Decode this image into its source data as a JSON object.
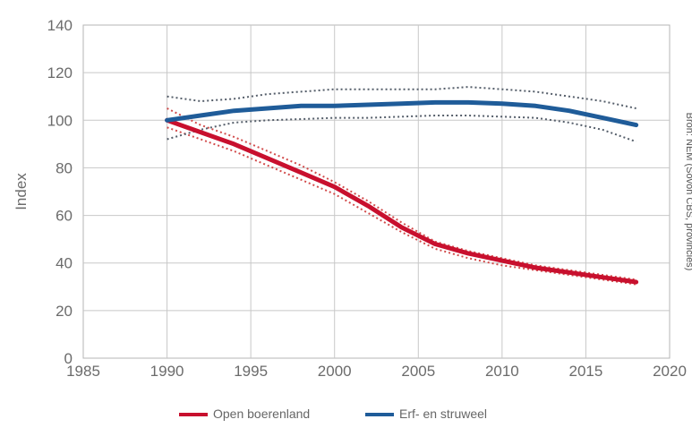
{
  "chart_data": {
    "type": "line",
    "ylabel": "Index",
    "xlabel": "",
    "source_note": "Bron: NEM (Sovon CBS, provincies)",
    "xlim": [
      1985,
      2020
    ],
    "ylim": [
      0,
      140
    ],
    "x_ticks": [
      1985,
      1990,
      1995,
      2000,
      2005,
      2010,
      2015,
      2020
    ],
    "y_ticks": [
      0,
      20,
      40,
      60,
      80,
      100,
      120,
      140
    ],
    "grid": true,
    "legend_position": "bottom",
    "series": [
      {
        "name": "Open boerenland",
        "color": "#c8102e",
        "x": [
          1990,
          1992,
          1994,
          1996,
          1998,
          2000,
          2002,
          2004,
          2006,
          2008,
          2010,
          2012,
          2014,
          2016,
          2018
        ],
        "values": [
          100,
          95,
          90,
          84,
          78,
          72,
          64,
          55,
          48,
          44,
          41,
          38,
          36,
          34,
          32
        ],
        "upper": [
          105,
          98,
          93,
          87,
          81,
          74,
          66,
          57,
          49,
          45,
          42,
          39,
          37,
          35,
          33
        ],
        "lower": [
          97,
          92,
          87,
          81,
          75,
          69,
          61,
          53,
          46,
          42,
          39,
          37,
          35,
          33,
          31
        ]
      },
      {
        "name": "Erf- en struweel",
        "color": "#1f5c99",
        "x": [
          1990,
          1992,
          1994,
          1996,
          1998,
          2000,
          2002,
          2004,
          2006,
          2008,
          2010,
          2012,
          2014,
          2016,
          2018
        ],
        "values": [
          100,
          102,
          104,
          105,
          106,
          106,
          106.5,
          107,
          107.5,
          107.5,
          107,
          106,
          104,
          101,
          98
        ],
        "upper": [
          110,
          108,
          109,
          111,
          112,
          113,
          113,
          113,
          113,
          114,
          113,
          112,
          110,
          108,
          105
        ],
        "lower": [
          92,
          96,
          99,
          100,
          100.5,
          101,
          101,
          101.5,
          102,
          102,
          101.5,
          101,
          99,
          96,
          91
        ]
      }
    ]
  }
}
